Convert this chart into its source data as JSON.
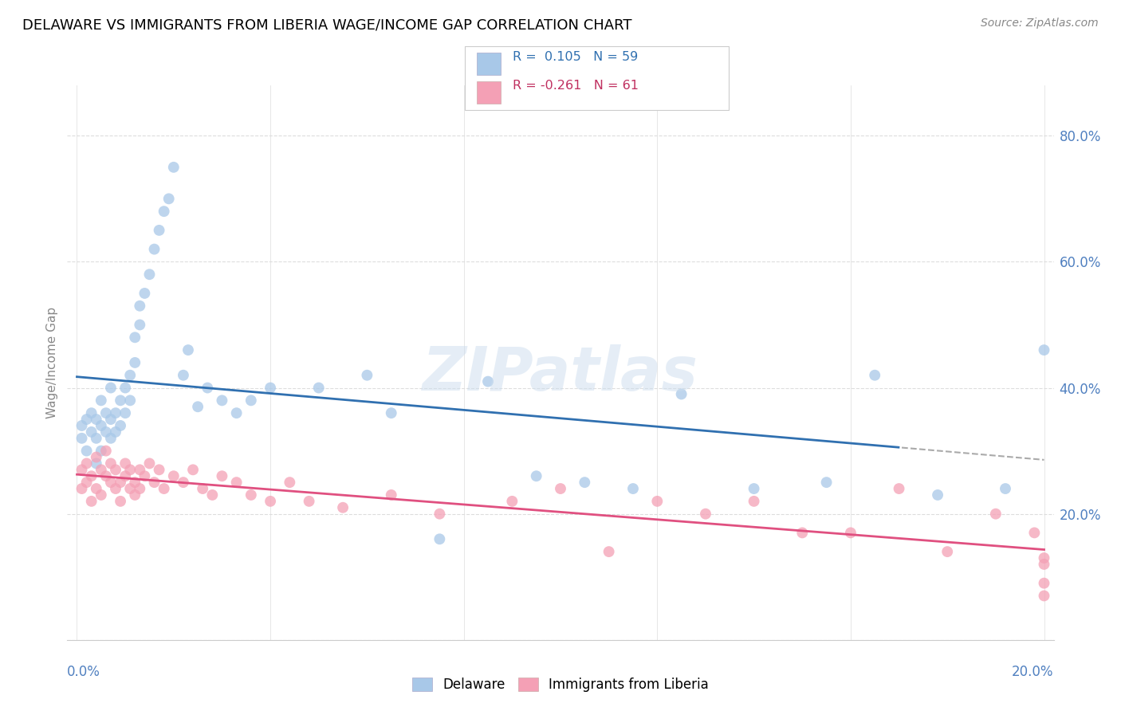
{
  "title": "DELAWARE VS IMMIGRANTS FROM LIBERIA WAGE/INCOME GAP CORRELATION CHART",
  "source": "Source: ZipAtlas.com",
  "ylabel": "Wage/Income Gap",
  "watermark": "ZIPatlas",
  "legend_label1": "Delaware",
  "legend_label2": "Immigrants from Liberia",
  "blue_color": "#a8c8e8",
  "pink_color": "#f4a0b5",
  "blue_line_color": "#3070b0",
  "pink_line_color": "#e05080",
  "blue_legend_color": "#a8c8e8",
  "pink_legend_color": "#f4a0b5",
  "text_color_blue": "#3070b0",
  "text_color_pink": "#c03060",
  "axis_label_color": "#5080c0",
  "r1": 0.105,
  "n1": 59,
  "r2": -0.261,
  "n2": 61,
  "xlim": [
    -0.002,
    0.202
  ],
  "ylim": [
    0.0,
    0.88
  ],
  "ytick_vals": [
    0.0,
    0.2,
    0.4,
    0.6,
    0.8
  ],
  "ytick_labels": [
    "",
    "20.0%",
    "40.0%",
    "60.0%",
    "80.0%"
  ],
  "blue_scatter_x": [
    0.001,
    0.001,
    0.002,
    0.002,
    0.003,
    0.003,
    0.004,
    0.004,
    0.004,
    0.005,
    0.005,
    0.005,
    0.006,
    0.006,
    0.007,
    0.007,
    0.007,
    0.008,
    0.008,
    0.009,
    0.009,
    0.01,
    0.01,
    0.011,
    0.011,
    0.012,
    0.012,
    0.013,
    0.013,
    0.014,
    0.015,
    0.016,
    0.017,
    0.018,
    0.019,
    0.02,
    0.022,
    0.023,
    0.025,
    0.027,
    0.03,
    0.033,
    0.036,
    0.04,
    0.05,
    0.06,
    0.065,
    0.075,
    0.085,
    0.095,
    0.105,
    0.115,
    0.125,
    0.14,
    0.155,
    0.165,
    0.178,
    0.192,
    0.2
  ],
  "blue_scatter_y": [
    0.32,
    0.34,
    0.3,
    0.35,
    0.33,
    0.36,
    0.32,
    0.28,
    0.35,
    0.3,
    0.34,
    0.38,
    0.33,
    0.36,
    0.32,
    0.35,
    0.4,
    0.33,
    0.36,
    0.34,
    0.38,
    0.36,
    0.4,
    0.38,
    0.42,
    0.44,
    0.48,
    0.5,
    0.53,
    0.55,
    0.58,
    0.62,
    0.65,
    0.68,
    0.7,
    0.75,
    0.42,
    0.46,
    0.37,
    0.4,
    0.38,
    0.36,
    0.38,
    0.4,
    0.4,
    0.42,
    0.36,
    0.16,
    0.41,
    0.26,
    0.25,
    0.24,
    0.39,
    0.24,
    0.25,
    0.42,
    0.23,
    0.24,
    0.46
  ],
  "pink_scatter_x": [
    0.001,
    0.001,
    0.002,
    0.002,
    0.003,
    0.003,
    0.004,
    0.004,
    0.005,
    0.005,
    0.006,
    0.006,
    0.007,
    0.007,
    0.008,
    0.008,
    0.009,
    0.009,
    0.01,
    0.01,
    0.011,
    0.011,
    0.012,
    0.012,
    0.013,
    0.013,
    0.014,
    0.015,
    0.016,
    0.017,
    0.018,
    0.02,
    0.022,
    0.024,
    0.026,
    0.028,
    0.03,
    0.033,
    0.036,
    0.04,
    0.044,
    0.048,
    0.055,
    0.065,
    0.075,
    0.09,
    0.1,
    0.11,
    0.12,
    0.13,
    0.14,
    0.15,
    0.16,
    0.17,
    0.18,
    0.19,
    0.198,
    0.2,
    0.2,
    0.2,
    0.2
  ],
  "pink_scatter_y": [
    0.27,
    0.24,
    0.28,
    0.25,
    0.26,
    0.22,
    0.29,
    0.24,
    0.27,
    0.23,
    0.26,
    0.3,
    0.25,
    0.28,
    0.24,
    0.27,
    0.25,
    0.22,
    0.26,
    0.28,
    0.24,
    0.27,
    0.25,
    0.23,
    0.27,
    0.24,
    0.26,
    0.28,
    0.25,
    0.27,
    0.24,
    0.26,
    0.25,
    0.27,
    0.24,
    0.23,
    0.26,
    0.25,
    0.23,
    0.22,
    0.25,
    0.22,
    0.21,
    0.23,
    0.2,
    0.22,
    0.24,
    0.14,
    0.22,
    0.2,
    0.22,
    0.17,
    0.17,
    0.24,
    0.14,
    0.2,
    0.17,
    0.13,
    0.09,
    0.12,
    0.07
  ]
}
